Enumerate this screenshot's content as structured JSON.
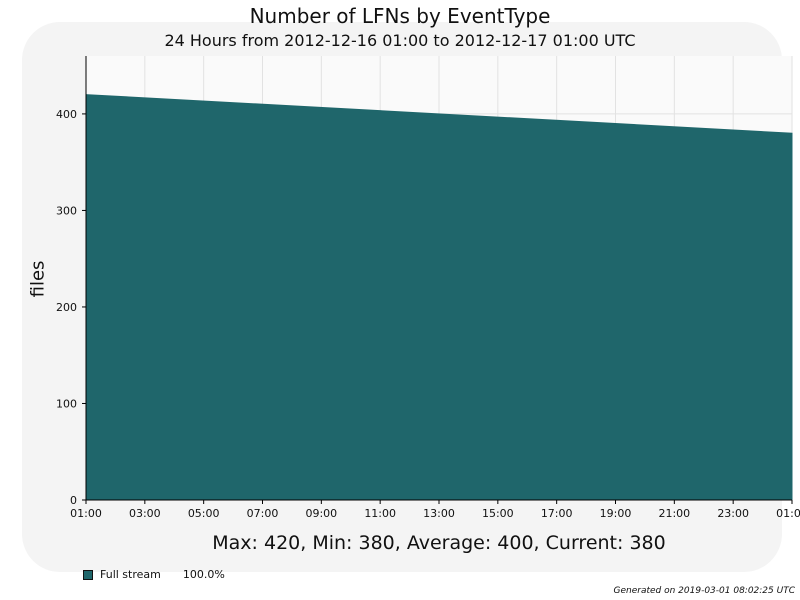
{
  "chart_data": {
    "type": "area",
    "title": "Number of LFNs by EventType",
    "subtitle": "24 Hours from 2012-12-16 01:00 to 2012-12-17 01:00 UTC",
    "ylabel": "files",
    "xlabel": "",
    "x_tick_labels": [
      "01:00",
      "03:00",
      "05:00",
      "07:00",
      "09:00",
      "11:00",
      "13:00",
      "15:00",
      "17:00",
      "19:00",
      "21:00",
      "23:00",
      "01:00"
    ],
    "x_start": "2012-12-16 01:00",
    "x_end": "2012-12-17 01:00",
    "y_ticks": [
      0,
      100,
      200,
      300,
      400
    ],
    "ylim": [
      0,
      460
    ],
    "series": [
      {
        "name": "Full stream",
        "color": "#1f666b",
        "x": [
          "2012-12-16 01:00",
          "2012-12-17 01:00"
        ],
        "values": [
          420,
          380
        ]
      }
    ],
    "grid": true,
    "legend_position": "bottom-left"
  },
  "stats_text": "Max: 420, Min: 380, Average: 400, Current: 380",
  "legend": [
    {
      "label": "Full stream",
      "percent": "100.0%",
      "color": "#1f666b"
    }
  ],
  "generated": "Generated on 2019-03-01 08:02:25 UTC"
}
